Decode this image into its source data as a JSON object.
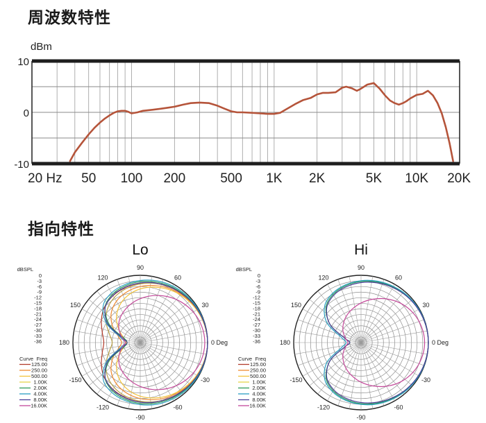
{
  "headings": {
    "frequency": "周波数特性",
    "directivity": "指向特性"
  },
  "chart_data": [
    {
      "type": "line",
      "title": "周波数特性",
      "ylabel": "dBm",
      "xscale": "log",
      "xlim": [
        20,
        20000
      ],
      "ylim": [
        -10,
        10
      ],
      "yticks": [
        10,
        0,
        -10
      ],
      "ytick_labels": [
        "10",
        "0",
        "-10"
      ],
      "xticks": [
        20,
        50,
        100,
        200,
        500,
        1000,
        2000,
        5000,
        10000,
        20000
      ],
      "xtick_labels": [
        "20 Hz",
        "50",
        "100",
        "200",
        "500",
        "1K",
        "2K",
        "5K",
        "10K",
        "20K"
      ],
      "grid": true,
      "line_color": "#b5543a",
      "series": [
        {
          "x": [
            37,
            40,
            45,
            50,
            55,
            60,
            65,
            70,
            75,
            80,
            85,
            90,
            95,
            100,
            110,
            120,
            140,
            160,
            180,
            200,
            230,
            260,
            300,
            350,
            400,
            450,
            500,
            550,
            600,
            700,
            800,
            900,
            1000,
            1100,
            1200,
            1400,
            1600,
            1800,
            2000,
            2200,
            2400,
            2700,
            3000,
            3200,
            3500,
            3800,
            4000,
            4500,
            5000,
            5500,
            6000,
            6500,
            7000,
            7500,
            8000,
            8500,
            9000,
            10000,
            11000,
            12000,
            13000,
            14000,
            15000,
            16000,
            17000,
            18000
          ],
          "values": [
            -9.5,
            -7.8,
            -5.9,
            -4.3,
            -3,
            -2,
            -1.2,
            -0.6,
            -0.1,
            0.2,
            0.3,
            0.3,
            0.1,
            -0.2,
            0,
            0.3,
            0.5,
            0.7,
            0.9,
            1.1,
            1.5,
            1.8,
            1.9,
            1.8,
            1.3,
            0.7,
            0.2,
            0,
            0,
            -0.1,
            -0.2,
            -0.3,
            -0.3,
            -0.1,
            0.5,
            1.6,
            2.4,
            2.8,
            3.5,
            3.8,
            3.8,
            3.9,
            4.8,
            5,
            4.7,
            4.2,
            4.5,
            5.4,
            5.7,
            4.6,
            3.3,
            2.3,
            1.8,
            1.5,
            1.8,
            2.2,
            2.7,
            3.4,
            3.6,
            4.2,
            3.3,
            1.8,
            -0.2,
            -2.9,
            -6,
            -9.5
          ]
        }
      ]
    },
    {
      "type": "polar",
      "title": "Lo",
      "r_axis_title": "dBSPL",
      "r_labels": [
        "0",
        "-3",
        "-6",
        "-9",
        "-12",
        "-15",
        "-18",
        "-21",
        "-24",
        "-27",
        "-30",
        "-33",
        "-36"
      ],
      "rlim": [
        -36,
        0
      ],
      "angle_ticks": [
        0,
        30,
        60,
        90,
        120,
        150,
        180,
        -150,
        -120,
        -90,
        -60,
        -30
      ],
      "angle_labels": [
        "0 Deg",
        "30",
        "60",
        "90",
        "120",
        "150",
        "180",
        "-150",
        "-120",
        "-90",
        "-60",
        "-30"
      ],
      "legend_headers": [
        "Curve",
        "Freq"
      ],
      "legend": [
        {
          "freq": "125.00",
          "color": "#b23a2a"
        },
        {
          "freq": "250.00",
          "color": "#ee8a30"
        },
        {
          "freq": "500.00",
          "color": "#f2c23a"
        },
        {
          "freq": "1.00K",
          "color": "#e4d44a"
        },
        {
          "freq": "2.00K",
          "color": "#2e9a58"
        },
        {
          "freq": "4.00K",
          "color": "#2a9fc2"
        },
        {
          "freq": "8.00K",
          "color": "#4a3e98"
        },
        {
          "freq": "16.00K",
          "color": "#c4489a"
        }
      ],
      "series": [
        {
          "name": "125.00",
          "color": "#b23a2a",
          "angles": [
            0,
            15,
            30,
            45,
            60,
            75,
            90,
            105,
            120,
            135,
            150,
            165,
            180,
            195,
            210,
            225,
            240,
            255,
            270,
            285,
            300,
            315,
            330,
            345
          ],
          "values": [
            0,
            -0.3,
            -0.8,
            -1.5,
            -2.3,
            -3.2,
            -4.2,
            -5.5,
            -7,
            -9,
            -12,
            -15,
            -16.5,
            -15,
            -12,
            -9,
            -7,
            -5.5,
            -4.2,
            -3.2,
            -2.3,
            -1.5,
            -0.8,
            -0.3
          ]
        },
        {
          "name": "250.00",
          "color": "#ee8a30",
          "angles": [
            0,
            15,
            30,
            45,
            60,
            75,
            90,
            105,
            120,
            135,
            150,
            165,
            180,
            195,
            210,
            225,
            240,
            255,
            270,
            285,
            300,
            315,
            330,
            345
          ],
          "values": [
            0,
            -0.3,
            -0.9,
            -1.8,
            -3,
            -4.4,
            -6,
            -8,
            -10.5,
            -14,
            -19,
            -24,
            -26,
            -24,
            -19,
            -14,
            -10.5,
            -8,
            -6,
            -4.4,
            -3,
            -1.8,
            -0.9,
            -0.3
          ]
        },
        {
          "name": "500.00",
          "color": "#f2c23a",
          "angles": [
            0,
            15,
            30,
            45,
            60,
            75,
            90,
            105,
            120,
            135,
            150,
            165,
            180,
            195,
            210,
            225,
            240,
            255,
            270,
            285,
            300,
            315,
            330,
            345
          ],
          "values": [
            0,
            -0.4,
            -1.1,
            -2.2,
            -3.6,
            -5.3,
            -7.3,
            -10,
            -13.5,
            -18,
            -23,
            -27,
            -28.5,
            -27,
            -23,
            -18,
            -13.5,
            -10,
            -7.3,
            -5.3,
            -3.6,
            -2.2,
            -1.1,
            -0.4
          ]
        },
        {
          "name": "1.00K",
          "color": "#b8a048",
          "angles": [
            0,
            15,
            30,
            45,
            60,
            75,
            90,
            105,
            120,
            135,
            150,
            165,
            180,
            195,
            210,
            225,
            240,
            255,
            270,
            285,
            300,
            315,
            330,
            345
          ],
          "values": [
            0,
            -0.2,
            -0.6,
            -1.3,
            -2.2,
            -3.3,
            -4.6,
            -6.2,
            -8.2,
            -11,
            -15,
            -19,
            -21,
            -19,
            -15,
            -11,
            -8.2,
            -6.2,
            -4.6,
            -3.3,
            -2.2,
            -1.3,
            -0.6,
            -0.2
          ]
        },
        {
          "name": "2.00K",
          "color": "#2e9a58",
          "angles": [
            0,
            15,
            30,
            45,
            60,
            75,
            90,
            105,
            120,
            135,
            150,
            165,
            180,
            195,
            210,
            225,
            240,
            255,
            270,
            285,
            300,
            315,
            330,
            345
          ],
          "values": [
            0,
            -0.2,
            -0.6,
            -1.1,
            -1.7,
            -2.5,
            -3.4,
            -4.6,
            -6.2,
            -9.4,
            -17,
            -27,
            -29,
            -27,
            -17,
            -9.4,
            -6.2,
            -4.6,
            -3.4,
            -2.5,
            -1.7,
            -1.1,
            -0.6,
            -0.2
          ]
        },
        {
          "name": "4.00K",
          "color": "#2a9fc2",
          "angles": [
            0,
            15,
            30,
            45,
            60,
            75,
            90,
            105,
            120,
            135,
            150,
            165,
            180,
            195,
            210,
            225,
            240,
            255,
            270,
            285,
            300,
            315,
            330,
            345
          ],
          "values": [
            0,
            -0.1,
            -0.3,
            -0.6,
            -1.1,
            -1.8,
            -2.8,
            -3.9,
            -5.3,
            -8,
            -15,
            -25,
            -28,
            -25,
            -15,
            -8,
            -5.3,
            -3.9,
            -2.8,
            -1.8,
            -1.1,
            -0.6,
            -0.3,
            -0.1
          ]
        },
        {
          "name": "8.00K",
          "color": "#4a3e98",
          "angles": [
            0,
            15,
            30,
            45,
            60,
            75,
            90,
            105,
            120,
            135,
            150,
            165,
            180,
            195,
            210,
            225,
            240,
            255,
            270,
            285,
            300,
            315,
            330,
            345
          ],
          "values": [
            0,
            -0.2,
            -0.7,
            -1.4,
            -2.2,
            -3.1,
            -4.1,
            -5.3,
            -6.8,
            -9.5,
            -16,
            -26,
            -29,
            -26,
            -16,
            -9.5,
            -6.8,
            -5.3,
            -4.1,
            -3.1,
            -2.2,
            -1.4,
            -0.7,
            -0.2
          ]
        },
        {
          "name": "16.00K",
          "color": "#c4489a",
          "angles": [
            0,
            15,
            30,
            45,
            60,
            75,
            90,
            105,
            120,
            135,
            150,
            165,
            180,
            195,
            210,
            225,
            240,
            255,
            270,
            285,
            300,
            315,
            330,
            345
          ],
          "values": [
            -1.5,
            -2,
            -3.3,
            -5.2,
            -7.5,
            -10,
            -12.5,
            -15,
            -17.5,
            -20,
            -23,
            -26,
            -28,
            -26,
            -23,
            -20,
            -17.5,
            -15,
            -12.5,
            -10,
            -7.5,
            -5.2,
            -3.3,
            -2
          ]
        }
      ]
    },
    {
      "type": "polar",
      "title": "Hi",
      "r_axis_title": "dBSPL",
      "r_labels": [
        "0",
        "-3",
        "-6",
        "-9",
        "-12",
        "-15",
        "-18",
        "-21",
        "-24",
        "-27",
        "-30",
        "-33",
        "-36"
      ],
      "rlim": [
        -36,
        0
      ],
      "angle_ticks": [
        0,
        30,
        60,
        90,
        120,
        150,
        180,
        -150,
        -120,
        -90,
        -60,
        -30
      ],
      "angle_labels": [
        "0 Deg",
        "30",
        "60",
        "90",
        "120",
        "150",
        "180",
        "-150",
        "-120",
        "-90",
        "-60",
        "-30"
      ],
      "legend_headers": [
        "Curve",
        "Freq"
      ],
      "legend": [
        {
          "freq": "125.00",
          "color": "#b23a2a"
        },
        {
          "freq": "250.00",
          "color": "#ee8a30"
        },
        {
          "freq": "500.00",
          "color": "#f2c23a"
        },
        {
          "freq": "1.00K",
          "color": "#e4d44a"
        },
        {
          "freq": "2.00K",
          "color": "#2e9a58"
        },
        {
          "freq": "4.00K",
          "color": "#2a9fc2"
        },
        {
          "freq": "8.00K",
          "color": "#4a3e98"
        },
        {
          "freq": "16.00K",
          "color": "#c4489a"
        }
      ],
      "series": [
        {
          "name": "2.00K",
          "color": "#2e9a58",
          "angles": [
            0,
            15,
            30,
            45,
            60,
            75,
            90,
            105,
            120,
            135,
            150,
            165,
            180,
            195,
            210,
            225,
            240,
            255,
            270,
            285,
            300,
            315,
            330,
            345
          ],
          "values": [
            0,
            -0.2,
            -0.5,
            -1,
            -1.6,
            -2.4,
            -3.3,
            -4.5,
            -6.2,
            -9.5,
            -17,
            -27,
            -30,
            -27,
            -17,
            -9.5,
            -6.2,
            -4.5,
            -3.3,
            -2.4,
            -1.6,
            -1,
            -0.5,
            -0.2
          ]
        },
        {
          "name": "4.00K",
          "color": "#2a9fc2",
          "angles": [
            0,
            15,
            30,
            45,
            60,
            75,
            90,
            105,
            120,
            135,
            150,
            165,
            180,
            195,
            210,
            225,
            240,
            255,
            270,
            285,
            300,
            315,
            330,
            345
          ],
          "values": [
            0,
            -0.1,
            -0.3,
            -0.7,
            -1.3,
            -2,
            -2.9,
            -4,
            -5.6,
            -8.5,
            -15,
            -25,
            -28,
            -25,
            -15,
            -8.5,
            -5.6,
            -4,
            -2.9,
            -2,
            -1.3,
            -0.7,
            -0.3,
            -0.1
          ]
        },
        {
          "name": "8.00K",
          "color": "#4a3e98",
          "angles": [
            0,
            15,
            30,
            45,
            60,
            75,
            90,
            105,
            120,
            135,
            150,
            165,
            180,
            195,
            210,
            225,
            240,
            255,
            270,
            285,
            300,
            315,
            330,
            345
          ],
          "values": [
            0,
            -0.2,
            -0.6,
            -1.2,
            -2,
            -2.9,
            -3.9,
            -5.1,
            -6.8,
            -10,
            -17,
            -27,
            -30,
            -27,
            -17,
            -10,
            -6.8,
            -5.1,
            -3.9,
            -2.9,
            -2,
            -1.2,
            -0.6,
            -0.2
          ]
        },
        {
          "name": "16.00K",
          "color": "#c4489a",
          "angles": [
            0,
            15,
            30,
            45,
            60,
            75,
            90,
            105,
            120,
            135,
            150,
            165,
            180,
            195,
            210,
            225,
            240,
            255,
            270,
            285,
            300,
            315,
            330,
            345
          ],
          "values": [
            -2,
            -2.6,
            -4,
            -6.2,
            -9,
            -12,
            -14.8,
            -17.5,
            -20,
            -22.5,
            -25,
            -27.5,
            -29,
            -27.5,
            -25,
            -22.5,
            -20,
            -17.5,
            -14.8,
            -12,
            -9,
            -6.2,
            -4,
            -2.6
          ]
        }
      ]
    }
  ]
}
